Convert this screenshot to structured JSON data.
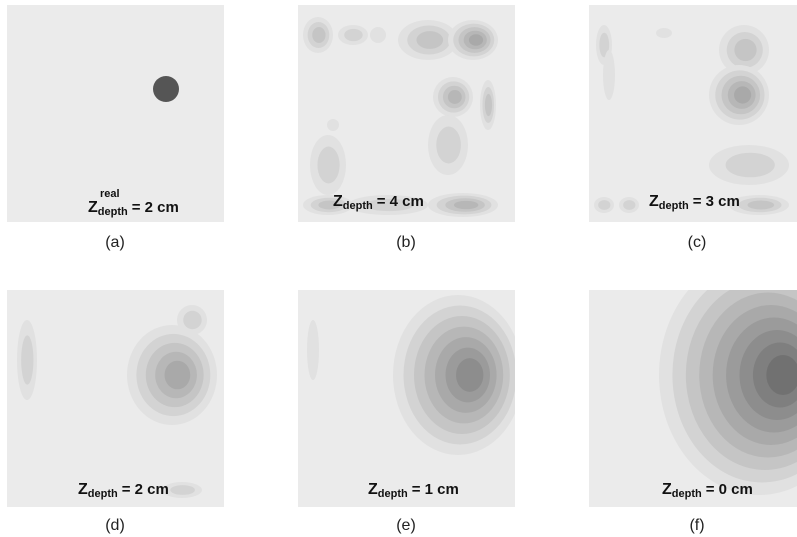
{
  "panels": [
    {
      "caption": "(a)",
      "label": {
        "symbol": "Z",
        "superscript": "real",
        "subscript": "depth",
        "value": "= 2 cm"
      }
    },
    {
      "caption": "(b)",
      "label": {
        "symbol": "Z",
        "subscript": "depth",
        "value": "= 4 cm"
      }
    },
    {
      "caption": "(c)",
      "label": {
        "symbol": "Z",
        "subscript": "depth",
        "value": "= 3 cm"
      }
    },
    {
      "caption": "(d)",
      "label": {
        "symbol": "Z",
        "subscript": "depth",
        "value": "= 2 cm"
      }
    },
    {
      "caption": "(e)",
      "label": {
        "symbol": "Z",
        "subscript": "depth",
        "value": "= 1 cm"
      }
    },
    {
      "caption": "(f)",
      "label": {
        "symbol": "Z",
        "subscript": "depth",
        "value": "= 0 cm"
      }
    }
  ]
}
